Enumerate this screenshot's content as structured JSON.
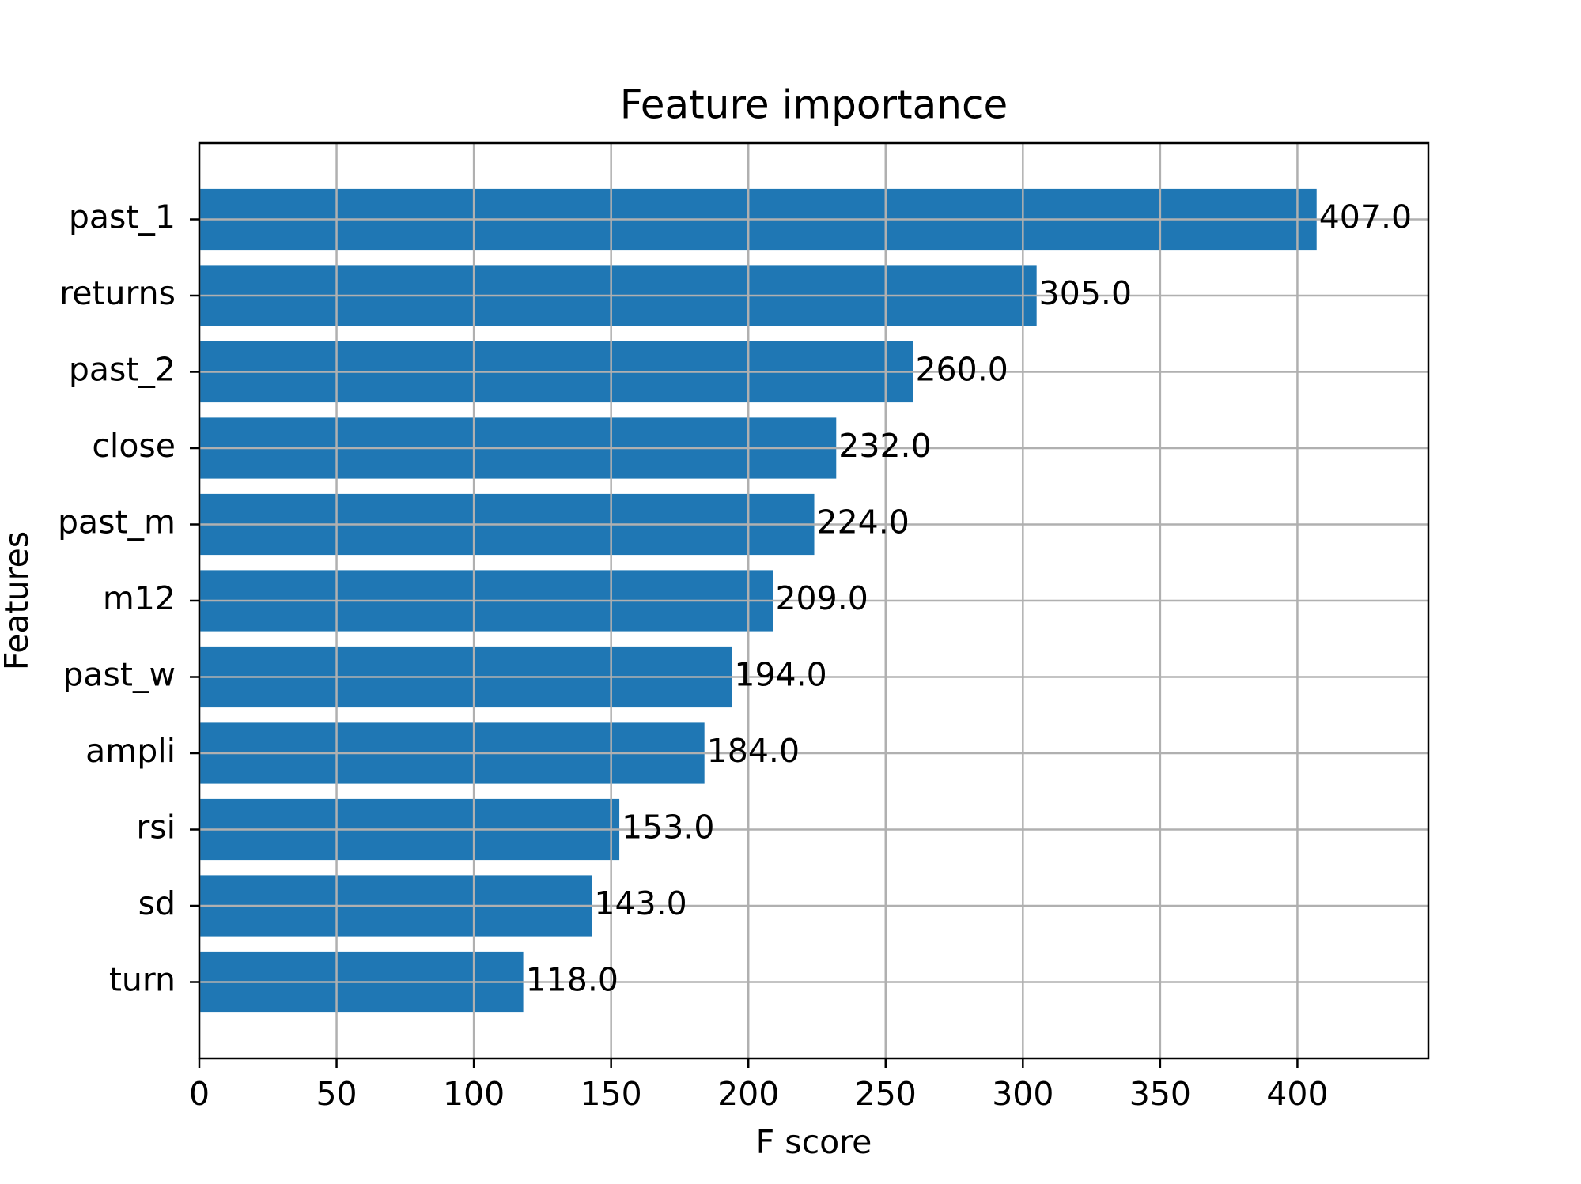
{
  "chart_data": {
    "type": "barh",
    "title": "Feature importance",
    "xlabel": "F score",
    "ylabel": "Features",
    "categories": [
      "past_1",
      "returns",
      "past_2",
      "close",
      "past_m",
      "m12",
      "past_w",
      "ampli",
      "rsi",
      "sd",
      "turn"
    ],
    "values": [
      407,
      305,
      260,
      232,
      224,
      209,
      194,
      184,
      153,
      143,
      118
    ],
    "value_labels": [
      "407.0",
      "305.0",
      "260.0",
      "232.0",
      "224.0",
      "209.0",
      "194.0",
      "184.0",
      "153.0",
      "143.0",
      "118.0"
    ],
    "color": "#1f77b4",
    "xlim": [
      0,
      447.7
    ],
    "xticks": [
      0,
      50,
      100,
      150,
      200,
      250,
      300,
      350,
      400
    ],
    "grid": true
  }
}
